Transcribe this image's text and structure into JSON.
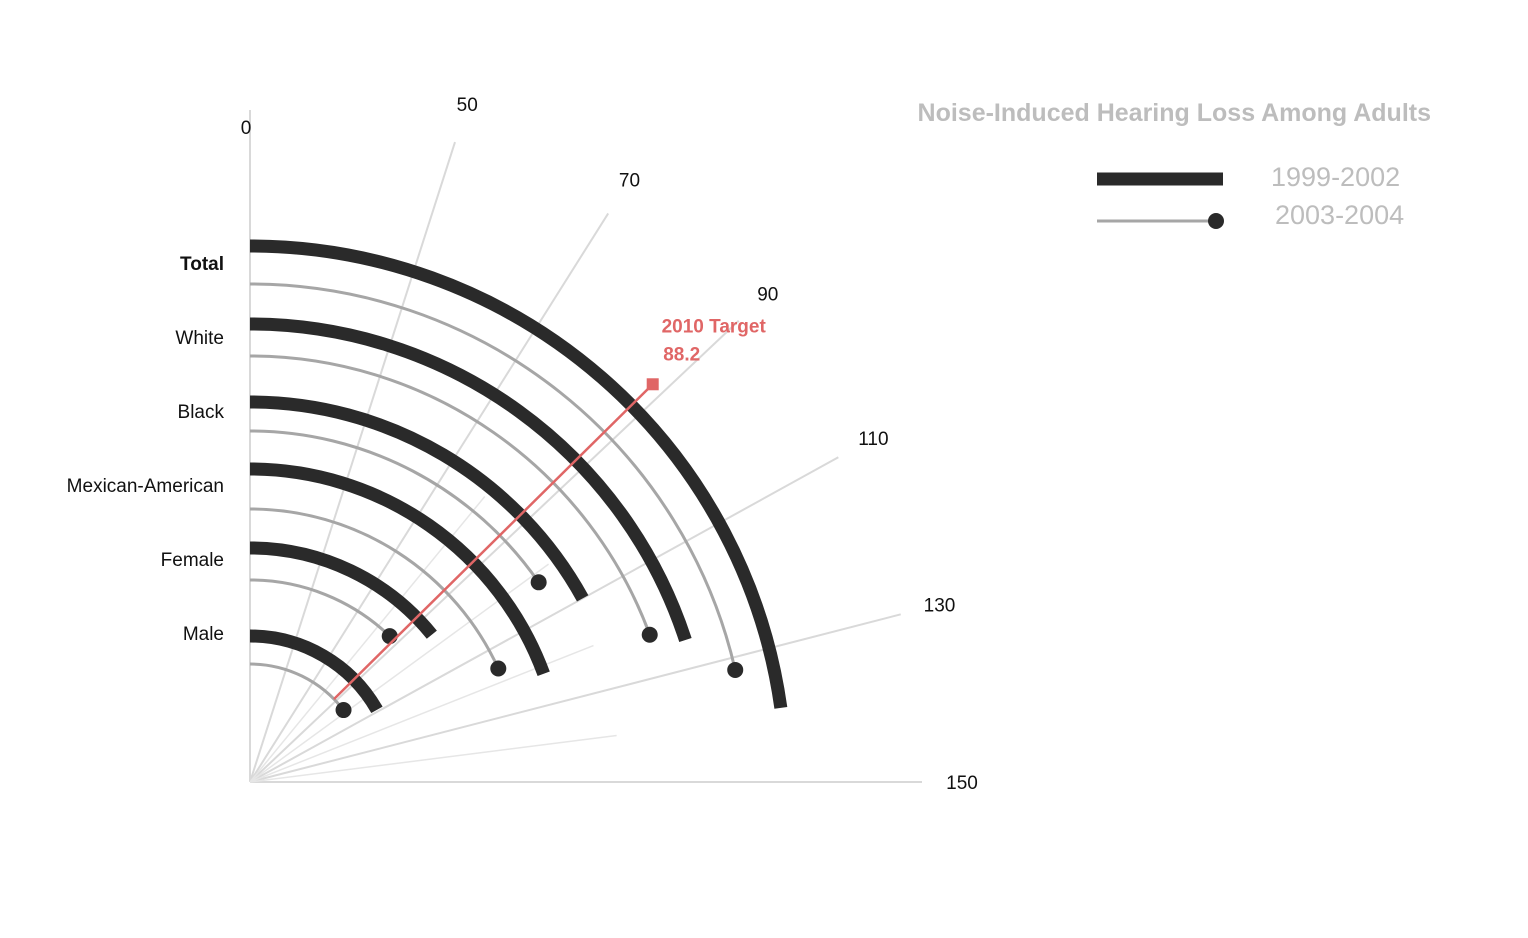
{
  "chart_data": {
    "type": "radial-bar",
    "title": "Noise-Induced Hearing Loss Among Adults",
    "categories": [
      "Total",
      "White",
      "Black",
      "Mexican-American",
      "Female",
      "Male"
    ],
    "series": [
      {
        "name": "1999-2002",
        "values": [
          139,
          125,
          110,
          122,
          96,
          109
        ]
      },
      {
        "name": "2003-2004",
        "values": [
          132,
          122,
          102,
          116,
          86,
          98
        ]
      }
    ],
    "ticks": [
      0,
      50,
      70,
      90,
      110,
      130,
      150
    ],
    "tick_labels": [
      "0",
      "50",
      "70",
      "90",
      "110",
      "130",
      "150"
    ],
    "axis_range": [
      0,
      150
    ],
    "target": {
      "label": "2010 Target",
      "value": 88.2,
      "value_label": "88.2"
    },
    "grid": true,
    "legend": "top-right",
    "colors": {
      "series1": "#2a2a2a",
      "series2": "#a6a6a6",
      "target": "#e06666",
      "grid": "#d9d9d9",
      "title": "#bdbdbd"
    }
  }
}
